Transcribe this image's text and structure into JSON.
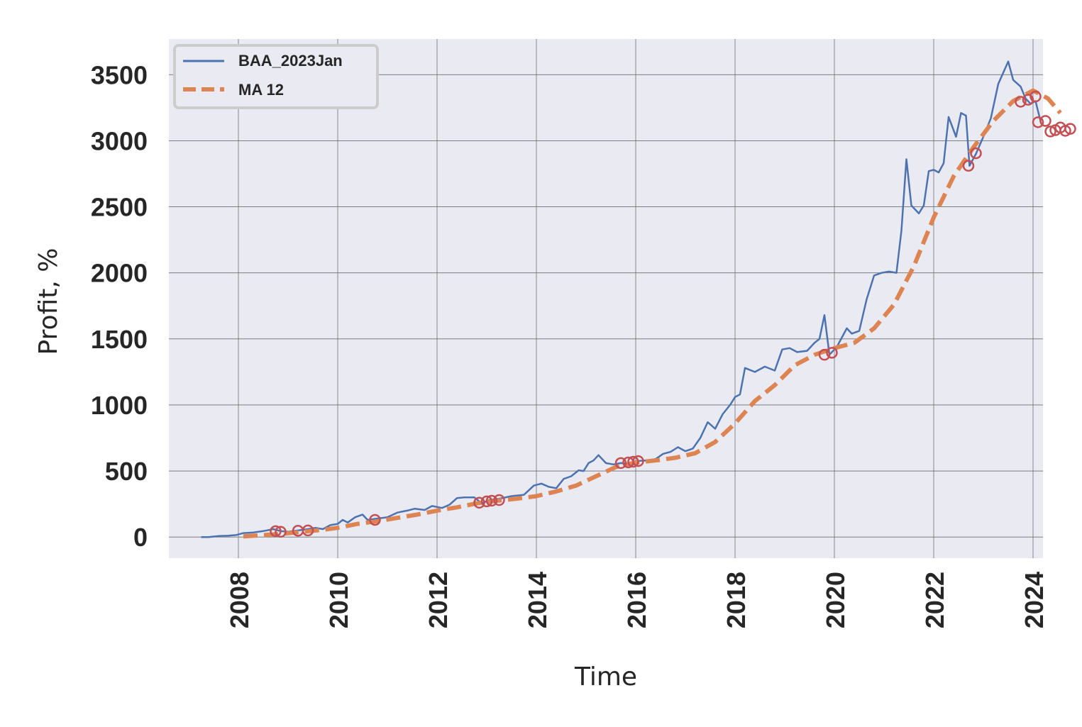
{
  "colors": {
    "background": "#eaeaf2",
    "grid": "#6e6e6e",
    "series_line": "#4c72b0",
    "moving_average": "#dd8452",
    "markers": "#c44e52"
  },
  "chart_data": {
    "type": "line",
    "title": "",
    "xlabel": "Time",
    "ylabel": "Profit, %",
    "xlim": [
      2006.6,
      2024.2
    ],
    "ylim": [
      -160,
      3770
    ],
    "x_ticks": [
      2008,
      2010,
      2012,
      2014,
      2016,
      2018,
      2020,
      2022,
      2024
    ],
    "x_tick_labels": [
      "2008",
      "2010",
      "2012",
      "2014",
      "2016",
      "2018",
      "2020",
      "2022",
      "2024"
    ],
    "y_ticks": [
      0,
      500,
      1000,
      1500,
      2000,
      2500,
      3000,
      3500
    ],
    "y_tick_labels": [
      "0",
      "500",
      "1000",
      "1500",
      "2000",
      "2500",
      "3000",
      "3500"
    ],
    "grid": true,
    "legend_position": "top-left",
    "series": [
      {
        "name": "BAA_2023Jan",
        "style": "solid",
        "points": [
          [
            2007.25,
            0
          ],
          [
            2007.4,
            0
          ],
          [
            2007.6,
            8
          ],
          [
            2007.8,
            10
          ],
          [
            2007.95,
            15
          ],
          [
            2008.1,
            30
          ],
          [
            2008.3,
            35
          ],
          [
            2008.5,
            45
          ],
          [
            2008.7,
            60
          ],
          [
            2008.85,
            45
          ],
          [
            2009.0,
            40
          ],
          [
            2009.2,
            50
          ],
          [
            2009.4,
            60
          ],
          [
            2009.55,
            70
          ],
          [
            2009.7,
            60
          ],
          [
            2009.85,
            90
          ],
          [
            2010.0,
            100
          ],
          [
            2010.1,
            130
          ],
          [
            2010.2,
            110
          ],
          [
            2010.35,
            150
          ],
          [
            2010.5,
            170
          ],
          [
            2010.6,
            130
          ],
          [
            2010.8,
            140
          ],
          [
            2011.0,
            150
          ],
          [
            2011.2,
            185
          ],
          [
            2011.4,
            200
          ],
          [
            2011.55,
            215
          ],
          [
            2011.75,
            205
          ],
          [
            2011.9,
            235
          ],
          [
            2012.1,
            220
          ],
          [
            2012.25,
            245
          ],
          [
            2012.4,
            295
          ],
          [
            2012.55,
            300
          ],
          [
            2012.75,
            300
          ],
          [
            2012.9,
            255
          ],
          [
            2013.05,
            280
          ],
          [
            2013.25,
            290
          ],
          [
            2013.5,
            310
          ],
          [
            2013.75,
            320
          ],
          [
            2013.95,
            390
          ],
          [
            2014.1,
            405
          ],
          [
            2014.25,
            380
          ],
          [
            2014.4,
            370
          ],
          [
            2014.55,
            440
          ],
          [
            2014.7,
            460
          ],
          [
            2014.85,
            505
          ],
          [
            2014.95,
            500
          ],
          [
            2015.05,
            560
          ],
          [
            2015.15,
            580
          ],
          [
            2015.25,
            620
          ],
          [
            2015.4,
            560
          ],
          [
            2015.55,
            550
          ],
          [
            2015.7,
            560
          ],
          [
            2015.85,
            555
          ],
          [
            2016.0,
            575
          ],
          [
            2016.2,
            580
          ],
          [
            2016.4,
            590
          ],
          [
            2016.55,
            630
          ],
          [
            2016.7,
            645
          ],
          [
            2016.85,
            680
          ],
          [
            2017.0,
            650
          ],
          [
            2017.15,
            670
          ],
          [
            2017.3,
            750
          ],
          [
            2017.45,
            870
          ],
          [
            2017.6,
            820
          ],
          [
            2017.75,
            930
          ],
          [
            2017.9,
            1000
          ],
          [
            2018.0,
            1060
          ],
          [
            2018.1,
            1080
          ],
          [
            2018.2,
            1280
          ],
          [
            2018.4,
            1250
          ],
          [
            2018.6,
            1290
          ],
          [
            2018.8,
            1260
          ],
          [
            2018.95,
            1420
          ],
          [
            2019.1,
            1430
          ],
          [
            2019.25,
            1400
          ],
          [
            2019.45,
            1410
          ],
          [
            2019.6,
            1470
          ],
          [
            2019.7,
            1500
          ],
          [
            2019.8,
            1680
          ],
          [
            2019.9,
            1380
          ],
          [
            2020.05,
            1440
          ],
          [
            2020.25,
            1580
          ],
          [
            2020.35,
            1540
          ],
          [
            2020.5,
            1560
          ],
          [
            2020.65,
            1800
          ],
          [
            2020.8,
            1980
          ],
          [
            2020.95,
            2000
          ],
          [
            2021.1,
            2010
          ],
          [
            2021.25,
            2000
          ],
          [
            2021.35,
            2320
          ],
          [
            2021.45,
            2860
          ],
          [
            2021.55,
            2510
          ],
          [
            2021.7,
            2450
          ],
          [
            2021.8,
            2510
          ],
          [
            2021.9,
            2770
          ],
          [
            2022.0,
            2780
          ],
          [
            2022.1,
            2760
          ],
          [
            2022.2,
            2830
          ],
          [
            2022.3,
            3180
          ],
          [
            2022.45,
            3030
          ],
          [
            2022.55,
            3210
          ],
          [
            2022.65,
            3190
          ],
          [
            2022.72,
            2810
          ],
          [
            2022.85,
            2900
          ],
          [
            2023.0,
            3030
          ],
          [
            2023.15,
            3170
          ],
          [
            2023.3,
            3430
          ],
          [
            2023.5,
            3600
          ],
          [
            2023.6,
            3460
          ],
          [
            2023.75,
            3410
          ],
          [
            2023.85,
            3320
          ],
          [
            2023.95,
            3280
          ],
          [
            2024.05,
            3300
          ],
          [
            2024.15,
            3150
          ]
        ]
      },
      {
        "name": "MA 12",
        "style": "dashed",
        "points": [
          [
            2008.1,
            5
          ],
          [
            2008.5,
            15
          ],
          [
            2008.9,
            25
          ],
          [
            2009.3,
            40
          ],
          [
            2009.7,
            55
          ],
          [
            2010.0,
            70
          ],
          [
            2010.4,
            100
          ],
          [
            2010.8,
            120
          ],
          [
            2011.2,
            145
          ],
          [
            2011.6,
            170
          ],
          [
            2012.0,
            200
          ],
          [
            2012.4,
            225
          ],
          [
            2012.8,
            255
          ],
          [
            2013.2,
            275
          ],
          [
            2013.6,
            290
          ],
          [
            2014.0,
            310
          ],
          [
            2014.4,
            345
          ],
          [
            2014.8,
            390
          ],
          [
            2015.2,
            460
          ],
          [
            2015.6,
            530
          ],
          [
            2016.0,
            565
          ],
          [
            2016.4,
            580
          ],
          [
            2016.8,
            600
          ],
          [
            2017.2,
            635
          ],
          [
            2017.6,
            720
          ],
          [
            2018.0,
            860
          ],
          [
            2018.4,
            1030
          ],
          [
            2018.8,
            1150
          ],
          [
            2019.2,
            1300
          ],
          [
            2019.6,
            1380
          ],
          [
            2020.0,
            1430
          ],
          [
            2020.4,
            1470
          ],
          [
            2020.8,
            1580
          ],
          [
            2021.2,
            1760
          ],
          [
            2021.6,
            2050
          ],
          [
            2022.0,
            2420
          ],
          [
            2022.4,
            2730
          ],
          [
            2022.8,
            2950
          ],
          [
            2023.2,
            3150
          ],
          [
            2023.6,
            3300
          ],
          [
            2024.0,
            3380
          ],
          [
            2024.3,
            3320
          ],
          [
            2024.55,
            3210
          ]
        ]
      }
    ],
    "markers": [
      [
        2008.75,
        45
      ],
      [
        2008.85,
        40
      ],
      [
        2009.2,
        48
      ],
      [
        2009.4,
        50
      ],
      [
        2010.75,
        130
      ],
      [
        2012.85,
        260
      ],
      [
        2013.0,
        270
      ],
      [
        2013.1,
        275
      ],
      [
        2013.25,
        280
      ],
      [
        2015.7,
        560
      ],
      [
        2015.85,
        565
      ],
      [
        2015.95,
        570
      ],
      [
        2016.05,
        575
      ],
      [
        2019.8,
        1380
      ],
      [
        2019.95,
        1395
      ],
      [
        2022.7,
        2810
      ],
      [
        2022.85,
        2905
      ],
      [
        2023.75,
        3295
      ],
      [
        2023.9,
        3310
      ],
      [
        2024.05,
        3335
      ],
      [
        2024.1,
        3140
      ],
      [
        2024.25,
        3150
      ],
      [
        2024.35,
        3070
      ],
      [
        2024.45,
        3080
      ],
      [
        2024.55,
        3100
      ],
      [
        2024.65,
        3075
      ],
      [
        2024.75,
        3090
      ]
    ]
  }
}
